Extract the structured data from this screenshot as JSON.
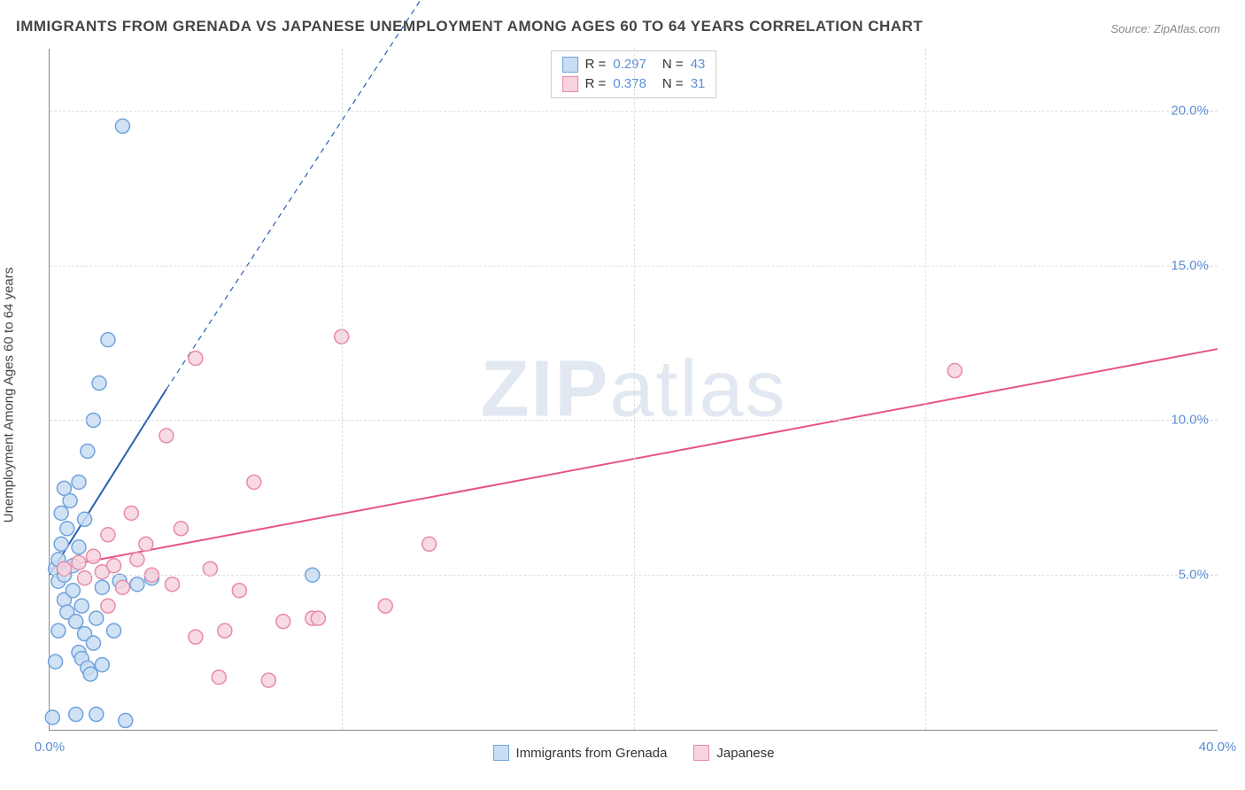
{
  "title": "IMMIGRANTS FROM GRENADA VS JAPANESE UNEMPLOYMENT AMONG AGES 60 TO 64 YEARS CORRELATION CHART",
  "source": "Source: ZipAtlas.com",
  "ylabel": "Unemployment Among Ages 60 to 64 years",
  "watermark_a": "ZIP",
  "watermark_b": "atlas",
  "chart": {
    "type": "scatter",
    "xlim": [
      0,
      40
    ],
    "ylim": [
      0,
      22
    ],
    "xticks": [
      0,
      10,
      20,
      30,
      40
    ],
    "xtick_labels": [
      "0.0%",
      "",
      "",
      "",
      "40.0%"
    ],
    "yticks": [
      5,
      10,
      15,
      20
    ],
    "ytick_labels": [
      "5.0%",
      "10.0%",
      "15.0%",
      "20.0%"
    ],
    "grid_color": "#dddddd",
    "axis_color": "#888888",
    "background_color": "#ffffff",
    "marker_radius": 8,
    "marker_stroke_width": 1.5,
    "line_width": 2,
    "series": [
      {
        "name": "Immigrants from Grenada",
        "R": "0.297",
        "N": "43",
        "marker_fill": "#c9ddf3",
        "marker_stroke": "#6fa3dd",
        "line_color": "#2a5fb0",
        "trend": {
          "x1": 0,
          "y1": 5.0,
          "x2": 4.0,
          "y2": 11.0,
          "dash_x2": 13.0,
          "dash_y2": 24.0
        },
        "points": [
          [
            0.2,
            5.2
          ],
          [
            0.3,
            4.8
          ],
          [
            0.3,
            5.5
          ],
          [
            0.4,
            6.0
          ],
          [
            0.5,
            5.0
          ],
          [
            0.5,
            4.2
          ],
          [
            0.6,
            6.5
          ],
          [
            0.6,
            3.8
          ],
          [
            0.7,
            7.4
          ],
          [
            0.8,
            5.3
          ],
          [
            0.8,
            4.5
          ],
          [
            0.9,
            3.5
          ],
          [
            1.0,
            8.0
          ],
          [
            1.0,
            2.5
          ],
          [
            1.1,
            2.3
          ],
          [
            1.1,
            4.0
          ],
          [
            1.2,
            6.8
          ],
          [
            1.2,
            3.1
          ],
          [
            1.3,
            9.0
          ],
          [
            1.3,
            2.0
          ],
          [
            1.4,
            1.8
          ],
          [
            1.5,
            10.0
          ],
          [
            1.5,
            2.8
          ],
          [
            1.6,
            3.6
          ],
          [
            1.7,
            11.2
          ],
          [
            1.8,
            2.1
          ],
          [
            1.8,
            4.6
          ],
          [
            2.0,
            12.6
          ],
          [
            2.2,
            3.2
          ],
          [
            2.4,
            4.8
          ],
          [
            2.5,
            19.5
          ],
          [
            2.6,
            0.3
          ],
          [
            3.0,
            4.7
          ],
          [
            3.5,
            4.9
          ],
          [
            0.1,
            0.4
          ],
          [
            0.9,
            0.5
          ],
          [
            1.6,
            0.5
          ],
          [
            0.4,
            7.0
          ],
          [
            0.5,
            7.8
          ],
          [
            0.3,
            3.2
          ],
          [
            0.2,
            2.2
          ],
          [
            9.0,
            5.0
          ],
          [
            1.0,
            5.9
          ]
        ]
      },
      {
        "name": "Japanese",
        "R": "0.378",
        "N": "31",
        "marker_fill": "#f7d3de",
        "marker_stroke": "#e88aa7",
        "line_color": "#e75480",
        "trend": {
          "x1": 0,
          "y1": 5.2,
          "x2": 40.0,
          "y2": 12.3
        },
        "points": [
          [
            0.5,
            5.2
          ],
          [
            1.0,
            5.4
          ],
          [
            1.2,
            4.9
          ],
          [
            1.5,
            5.6
          ],
          [
            1.8,
            5.1
          ],
          [
            2.0,
            6.3
          ],
          [
            2.2,
            5.3
          ],
          [
            2.5,
            4.6
          ],
          [
            2.8,
            7.0
          ],
          [
            3.0,
            5.5
          ],
          [
            3.3,
            6.0
          ],
          [
            3.5,
            5.0
          ],
          [
            4.0,
            9.5
          ],
          [
            4.2,
            4.7
          ],
          [
            4.5,
            6.5
          ],
          [
            5.0,
            3.0
          ],
          [
            5.0,
            12.0
          ],
          [
            5.5,
            5.2
          ],
          [
            5.8,
            1.7
          ],
          [
            6.0,
            3.2
          ],
          [
            6.5,
            4.5
          ],
          [
            7.0,
            8.0
          ],
          [
            7.5,
            1.6
          ],
          [
            8.0,
            3.5
          ],
          [
            9.0,
            3.6
          ],
          [
            9.2,
            3.6
          ],
          [
            10.0,
            12.7
          ],
          [
            11.5,
            4.0
          ],
          [
            13.0,
            6.0
          ],
          [
            31.0,
            11.6
          ],
          [
            2.0,
            4.0
          ]
        ]
      }
    ]
  },
  "colors": {
    "tick_label": "#5b8fd6",
    "text": "#444444"
  }
}
